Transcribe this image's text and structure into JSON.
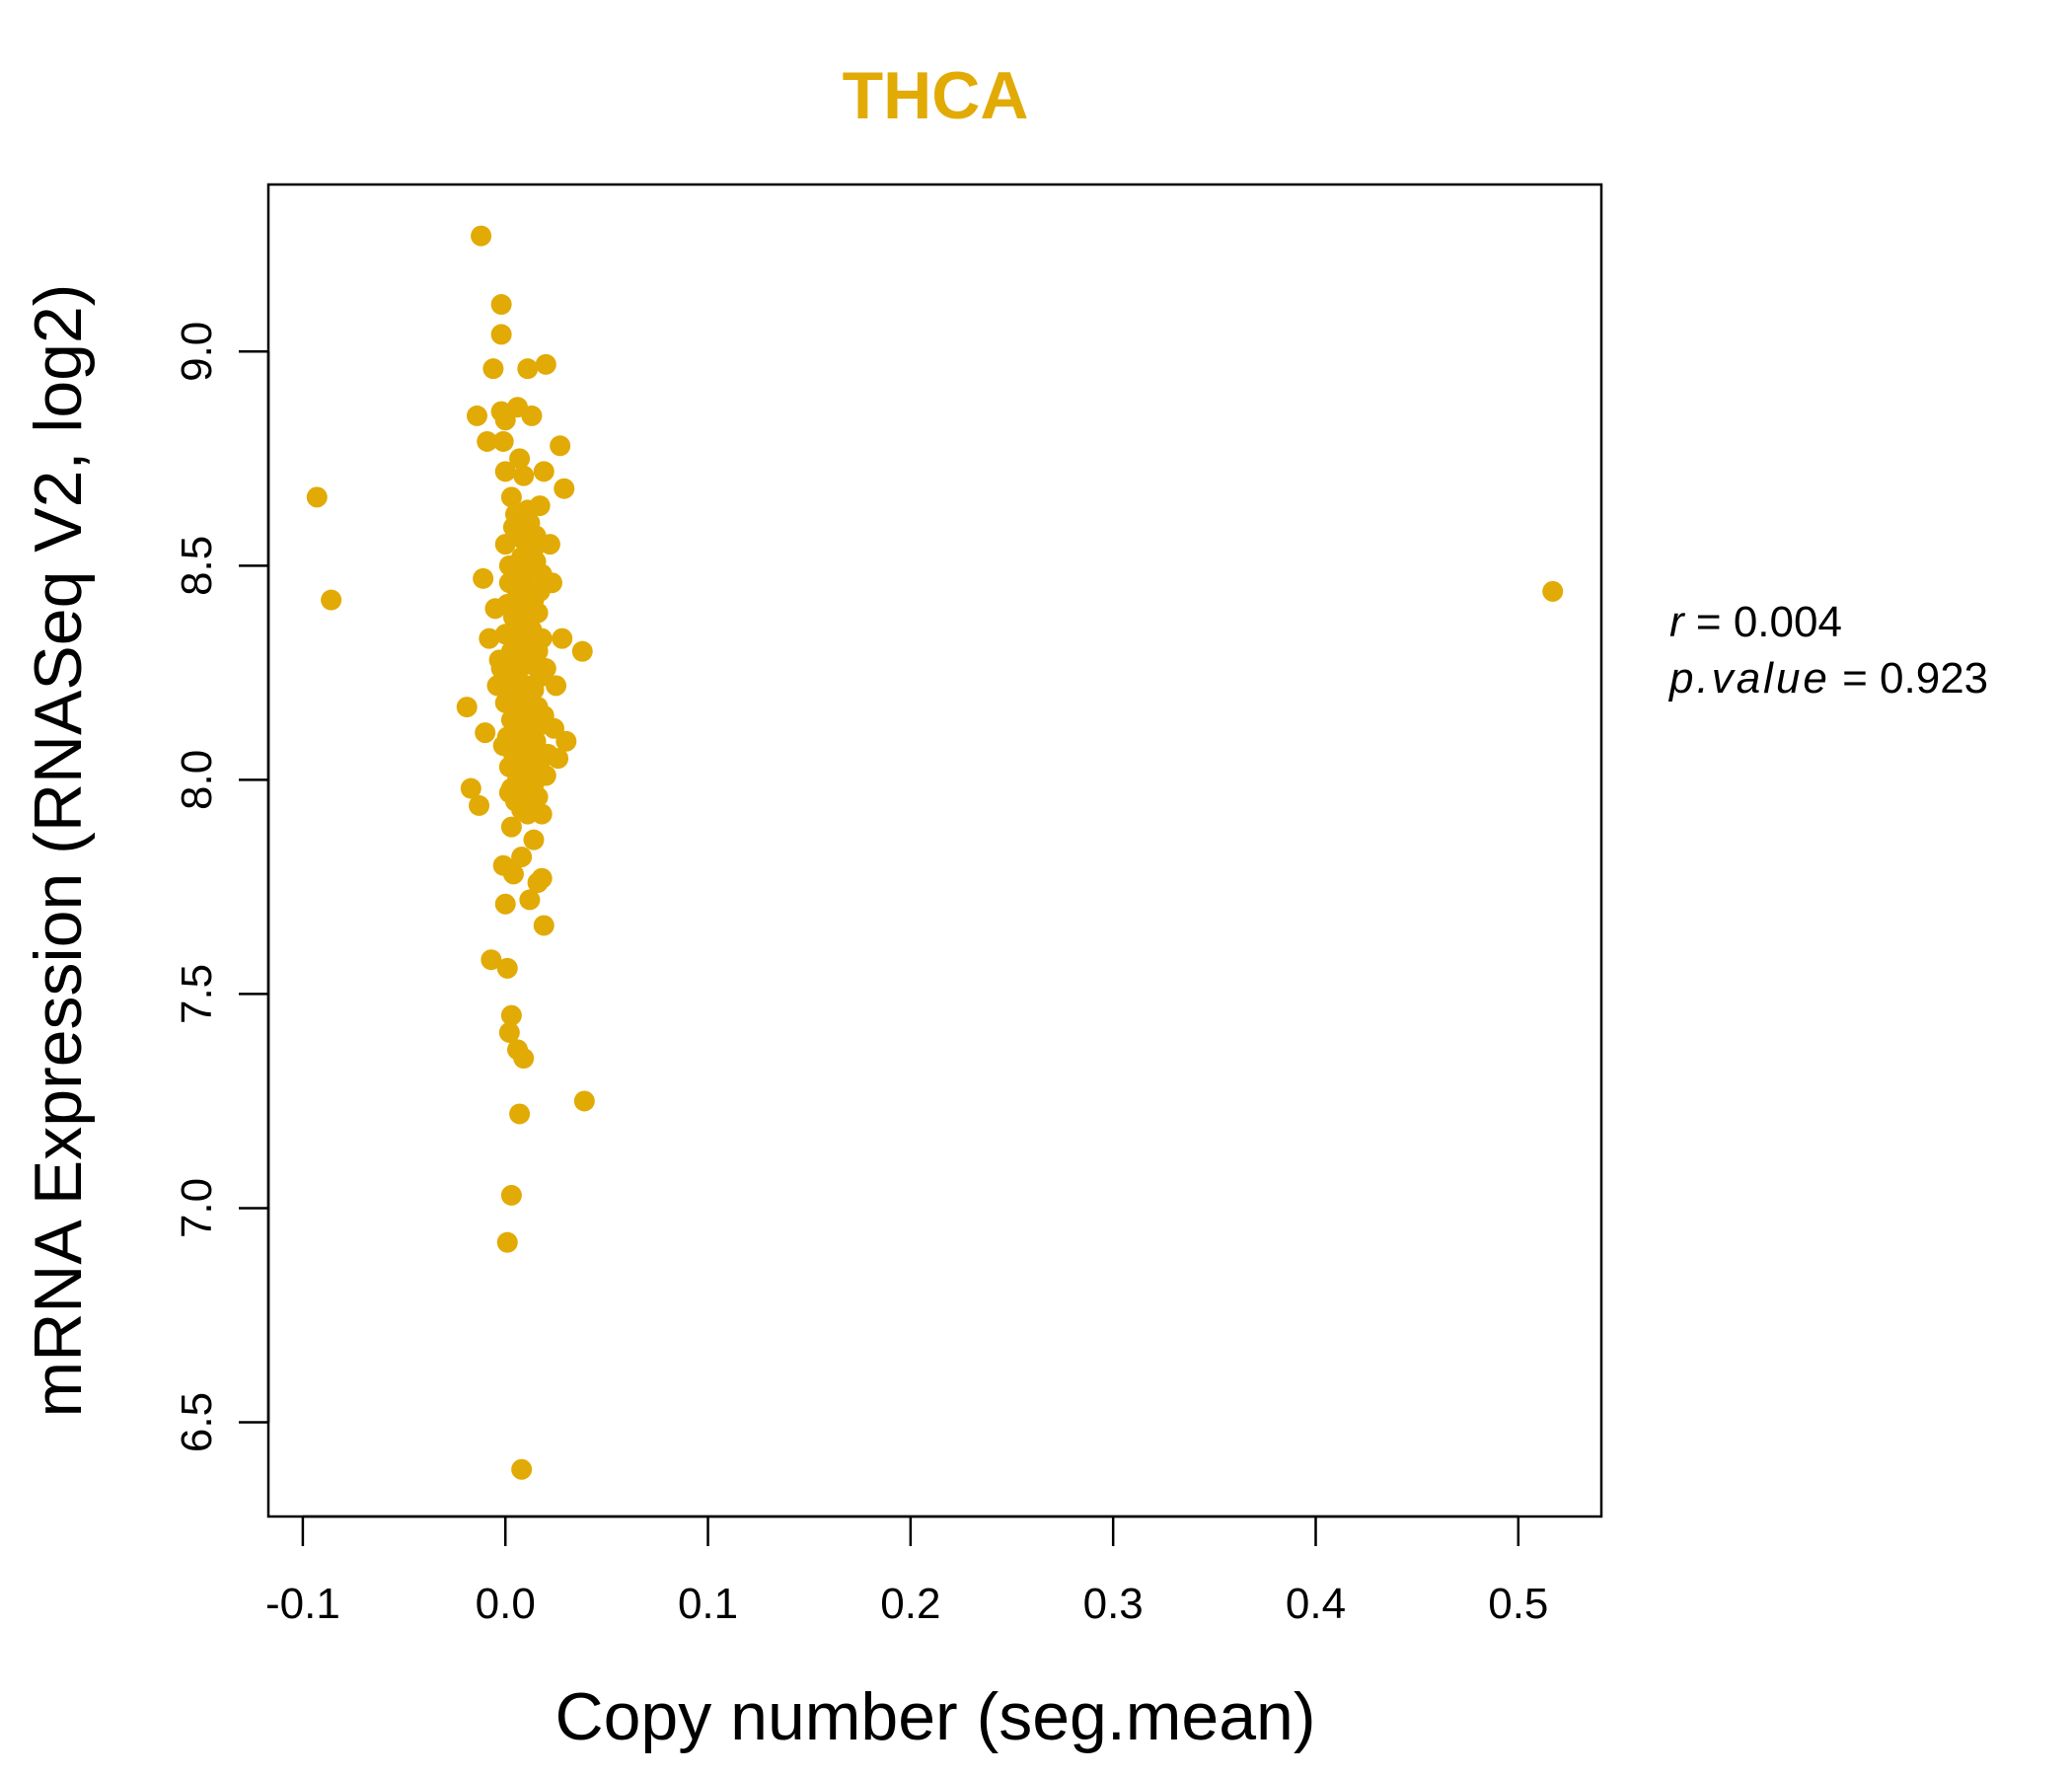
{
  "colors": {
    "accent": "#E2AA05",
    "axis": "#000000",
    "background": "#FFFFFF"
  },
  "chart_data": {
    "type": "scatter",
    "title": "THCA",
    "xlabel": "Copy number (seg.mean)",
    "ylabel": "mRNA Expression (RNASeq V2, log2)",
    "xlim": [
      -0.117,
      0.541
    ],
    "ylim": [
      6.28,
      9.39
    ],
    "x_ticks": [
      -0.1,
      0.0,
      0.1,
      0.2,
      0.3,
      0.4,
      0.5
    ],
    "x_tick_labels": [
      "-0.1",
      "0.0",
      "0.1",
      "0.2",
      "0.3",
      "0.4",
      "0.5"
    ],
    "y_ticks": [
      6.5,
      7.0,
      7.5,
      8.0,
      8.5,
      9.0
    ],
    "y_tick_labels": [
      "6.5",
      "7.0",
      "7.5",
      "8.0",
      "8.5",
      "9.0"
    ],
    "stats": {
      "r_label": "r",
      "r_value": "0.004",
      "p_label": "p.value",
      "p_value": "0.923"
    },
    "points": [
      [
        -0.012,
        9.27
      ],
      [
        -0.002,
        9.11
      ],
      [
        -0.002,
        9.04
      ],
      [
        -0.006,
        8.96
      ],
      [
        0.011,
        8.96
      ],
      [
        0.02,
        8.97
      ],
      [
        -0.014,
        8.85
      ],
      [
        -0.002,
        8.86
      ],
      [
        0.0,
        8.84
      ],
      [
        0.006,
        8.87
      ],
      [
        0.013,
        8.85
      ],
      [
        -0.009,
        8.79
      ],
      [
        -0.001,
        8.79
      ],
      [
        0.027,
        8.78
      ],
      [
        0.007,
        8.75
      ],
      [
        0.0,
        8.72
      ],
      [
        0.009,
        8.71
      ],
      [
        0.019,
        8.72
      ],
      [
        0.029,
        8.68
      ],
      [
        -0.093,
        8.66
      ],
      [
        -0.086,
        8.42
      ],
      [
        0.517,
        8.44
      ],
      [
        0.038,
        8.3
      ],
      [
        0.039,
        7.25
      ],
      [
        -0.019,
        8.17
      ],
      [
        -0.017,
        7.98
      ],
      [
        -0.013,
        7.94
      ],
      [
        -0.011,
        8.47
      ],
      [
        -0.01,
        8.11
      ],
      [
        -0.007,
        7.58
      ],
      [
        0.003,
        7.45
      ],
      [
        0.002,
        7.41
      ],
      [
        0.006,
        7.37
      ],
      [
        0.009,
        7.35
      ],
      [
        0.007,
        7.22
      ],
      [
        0.003,
        7.03
      ],
      [
        0.001,
        6.92
      ],
      [
        0.008,
        6.39
      ],
      [
        0.001,
        7.56
      ],
      [
        0.0,
        7.71
      ],
      [
        0.012,
        7.72
      ],
      [
        0.019,
        7.66
      ],
      [
        -0.001,
        7.8
      ],
      [
        0.004,
        7.78
      ],
      [
        0.008,
        7.82
      ],
      [
        0.016,
        7.76
      ],
      [
        0.018,
        7.77
      ],
      [
        0.014,
        7.86
      ],
      [
        0.003,
        7.89
      ],
      [
        0.011,
        7.92
      ],
      [
        0.026,
        8.05
      ],
      [
        0.03,
        8.09
      ],
      [
        0.028,
        8.33
      ],
      [
        0.023,
        8.46
      ],
      [
        0.022,
        8.55
      ],
      [
        0.025,
        8.22
      ],
      [
        0.024,
        8.12
      ],
      [
        -0.005,
        8.4
      ],
      [
        -0.004,
        8.22
      ],
      [
        -0.008,
        8.33
      ],
      [
        0.02,
        8.01
      ],
      [
        0.017,
        8.64
      ],
      [
        0.012,
        8.6
      ],
      [
        0.003,
        8.66
      ],
      [
        0.005,
        8.62
      ],
      [
        0.015,
        8.57
      ],
      [
        0.0,
        8.55
      ],
      [
        0.008,
        8.52
      ],
      [
        0.004,
        8.5
      ],
      [
        0.012,
        8.49
      ],
      [
        0.018,
        8.48
      ],
      [
        0.002,
        8.46
      ],
      [
        0.01,
        8.45
      ],
      [
        0.006,
        8.43
      ],
      [
        0.014,
        8.42
      ],
      [
        0.001,
        8.41
      ],
      [
        0.009,
        8.4
      ],
      [
        0.016,
        8.39
      ],
      [
        0.004,
        8.38
      ],
      [
        0.011,
        8.37
      ],
      [
        0.007,
        8.36
      ],
      [
        0.013,
        8.35
      ],
      [
        0.0,
        8.34
      ],
      [
        0.018,
        8.33
      ],
      [
        0.005,
        8.32
      ],
      [
        0.01,
        8.31
      ],
      [
        0.003,
        8.3
      ],
      [
        0.015,
        8.29
      ],
      [
        0.008,
        8.28
      ],
      [
        0.012,
        8.27
      ],
      [
        -0.002,
        8.26
      ],
      [
        0.006,
        8.25
      ],
      [
        0.017,
        8.24
      ],
      [
        0.002,
        8.23
      ],
      [
        0.01,
        8.22
      ],
      [
        0.014,
        8.21
      ],
      [
        0.004,
        8.2
      ],
      [
        0.009,
        8.19
      ],
      [
        0.0,
        8.18
      ],
      [
        0.016,
        8.17
      ],
      [
        0.007,
        8.16
      ],
      [
        0.012,
        8.15
      ],
      [
        0.003,
        8.14
      ],
      [
        0.019,
        8.13
      ],
      [
        0.005,
        8.12
      ],
      [
        0.011,
        8.11
      ],
      [
        0.001,
        8.1
      ],
      [
        0.015,
        8.09
      ],
      [
        0.008,
        8.08
      ],
      [
        0.013,
        8.07
      ],
      [
        0.004,
        8.06
      ],
      [
        0.01,
        8.05
      ],
      [
        0.017,
        8.04
      ],
      [
        0.002,
        8.03
      ],
      [
        0.007,
        8.02
      ],
      [
        0.012,
        8.01
      ],
      [
        0.006,
        8.0
      ],
      [
        0.014,
        7.99
      ],
      [
        0.003,
        7.98
      ],
      [
        0.009,
        7.97
      ],
      [
        0.016,
        7.96
      ],
      [
        0.005,
        7.95
      ],
      [
        0.011,
        7.94
      ],
      [
        0.008,
        7.93
      ],
      [
        0.018,
        7.92
      ],
      [
        0.002,
        7.97
      ],
      [
        0.013,
        8.44
      ],
      [
        0.006,
        8.47
      ],
      [
        0.015,
        8.51
      ],
      [
        0.009,
        8.56
      ],
      [
        0.004,
        8.59
      ],
      [
        0.011,
        8.63
      ],
      [
        0.007,
        8.58
      ],
      [
        0.013,
        8.53
      ],
      [
        0.002,
        8.5
      ],
      [
        0.017,
        8.44
      ],
      [
        0.005,
        8.36
      ],
      [
        0.016,
        8.3
      ],
      [
        -0.003,
        8.28
      ],
      [
        0.02,
        8.26
      ],
      [
        0.001,
        8.19
      ],
      [
        0.019,
        8.15
      ],
      [
        -0.001,
        8.08
      ],
      [
        0.021,
        8.06
      ],
      [
        0.008,
        8.34
      ],
      [
        0.012,
        8.19
      ],
      [
        0.006,
        8.09
      ],
      [
        0.01,
        8.41
      ],
      [
        0.014,
        8.54
      ],
      [
        0.004,
        8.26
      ]
    ]
  }
}
